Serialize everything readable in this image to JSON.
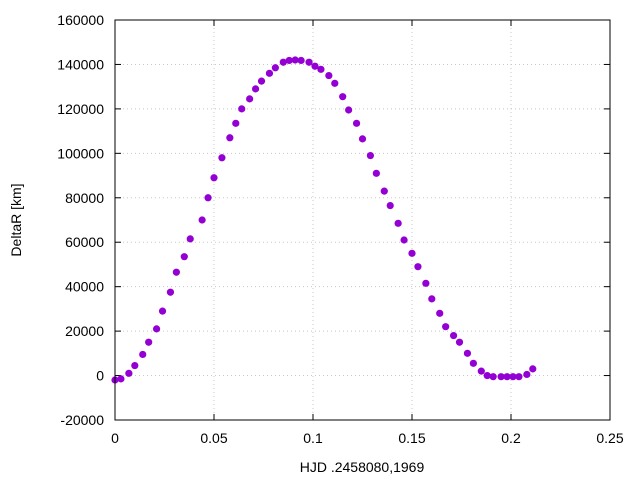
{
  "chart_data": {
    "type": "scatter",
    "xlabel": "HJD .2458080,1969",
    "ylabel": "DeltaR [km]",
    "xlim": [
      0,
      0.25
    ],
    "ylim": [
      -20000,
      160000
    ],
    "grid": true,
    "marker_color": "#9400d3",
    "x_ticks": [
      0,
      0.05,
      0.1,
      0.15,
      0.2,
      0.25
    ],
    "x_tick_labels": [
      "0",
      "0.05",
      "0.1",
      "0.15",
      "0.2",
      "0.25"
    ],
    "y_ticks": [
      -20000,
      0,
      20000,
      40000,
      60000,
      80000,
      100000,
      120000,
      140000,
      160000
    ],
    "y_tick_labels": [
      "-20000",
      "0",
      "20000",
      "40000",
      "60000",
      "80000",
      "100000",
      "120000",
      "140000",
      "160000"
    ],
    "x": [
      0.0,
      0.003,
      0.007,
      0.01,
      0.014,
      0.017,
      0.021,
      0.024,
      0.028,
      0.031,
      0.035,
      0.038,
      0.044,
      0.047,
      0.05,
      0.054,
      0.058,
      0.061,
      0.064,
      0.068,
      0.071,
      0.074,
      0.078,
      0.081,
      0.085,
      0.088,
      0.091,
      0.094,
      0.098,
      0.101,
      0.104,
      0.108,
      0.111,
      0.115,
      0.118,
      0.122,
      0.125,
      0.129,
      0.132,
      0.136,
      0.139,
      0.143,
      0.146,
      0.15,
      0.153,
      0.157,
      0.16,
      0.164,
      0.167,
      0.171,
      0.174,
      0.178,
      0.181,
      0.185,
      0.188,
      0.191,
      0.195,
      0.198,
      0.201,
      0.204,
      0.208,
      0.211
    ],
    "y": [
      -2000,
      -1500,
      1000,
      4500,
      9500,
      15000,
      21000,
      29000,
      37500,
      46500,
      53500,
      61500,
      70000,
      80000,
      89000,
      98000,
      107000,
      113500,
      120000,
      124500,
      129000,
      132500,
      136000,
      138500,
      141000,
      141800,
      142000,
      141800,
      141000,
      139200,
      137800,
      135000,
      131500,
      125500,
      119500,
      113500,
      106500,
      99000,
      91000,
      83000,
      76500,
      68500,
      61000,
      55000,
      49000,
      41500,
      34500,
      28000,
      22000,
      18000,
      15000,
      10000,
      5500,
      2000,
      0,
      -500,
      -500,
      -500,
      -500,
      -500,
      500,
      3000
    ]
  }
}
